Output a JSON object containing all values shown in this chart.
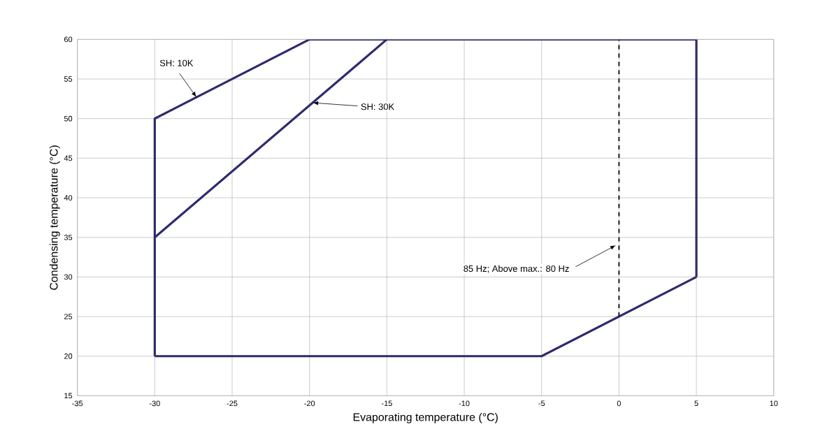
{
  "chart_data": {
    "type": "line",
    "xlabel": "Evaporating temperature (°C)",
    "ylabel": "Condensing temperature (°C)",
    "series": [
      {
        "color": "#2e2a6e",
        "x": [
          -30,
          -30,
          -20,
          5,
          5
        ],
        "values": [
          20,
          50,
          60,
          60,
          30
        ]
      },
      {
        "color": "#2e2a6e",
        "x": [
          -30,
          -5,
          5
        ],
        "values": [
          20,
          20,
          30
        ]
      },
      {
        "color": "#2e2a6e",
        "x": [
          -30,
          -15
        ],
        "values": [
          35,
          60
        ]
      },
      {
        "color": "#1a1a1a",
        "x": [
          0,
          0
        ],
        "values": [
          25,
          60
        ],
        "line_style": "dashed"
      }
    ],
    "annotations": [
      {
        "text": "SH: 10K",
        "x": -27.3,
        "y": 52.7
      },
      {
        "text": "SH: 30K",
        "x": -19.8,
        "y": 52
      },
      {
        "text": "85 Hz; Above max.: 80 Hz",
        "x": -0.2,
        "y": 34
      }
    ],
    "xlim": [
      -35,
      10
    ],
    "xticks": [
      -35,
      -30,
      -25,
      -20,
      -15,
      -10,
      -5,
      0,
      5,
      10
    ],
    "ylim": [
      15,
      60
    ],
    "yticks": [
      15,
      20,
      25,
      30,
      35,
      40,
      45,
      50,
      55,
      60
    ],
    "grid": true,
    "line_style": "solid",
    "marker": "none"
  }
}
